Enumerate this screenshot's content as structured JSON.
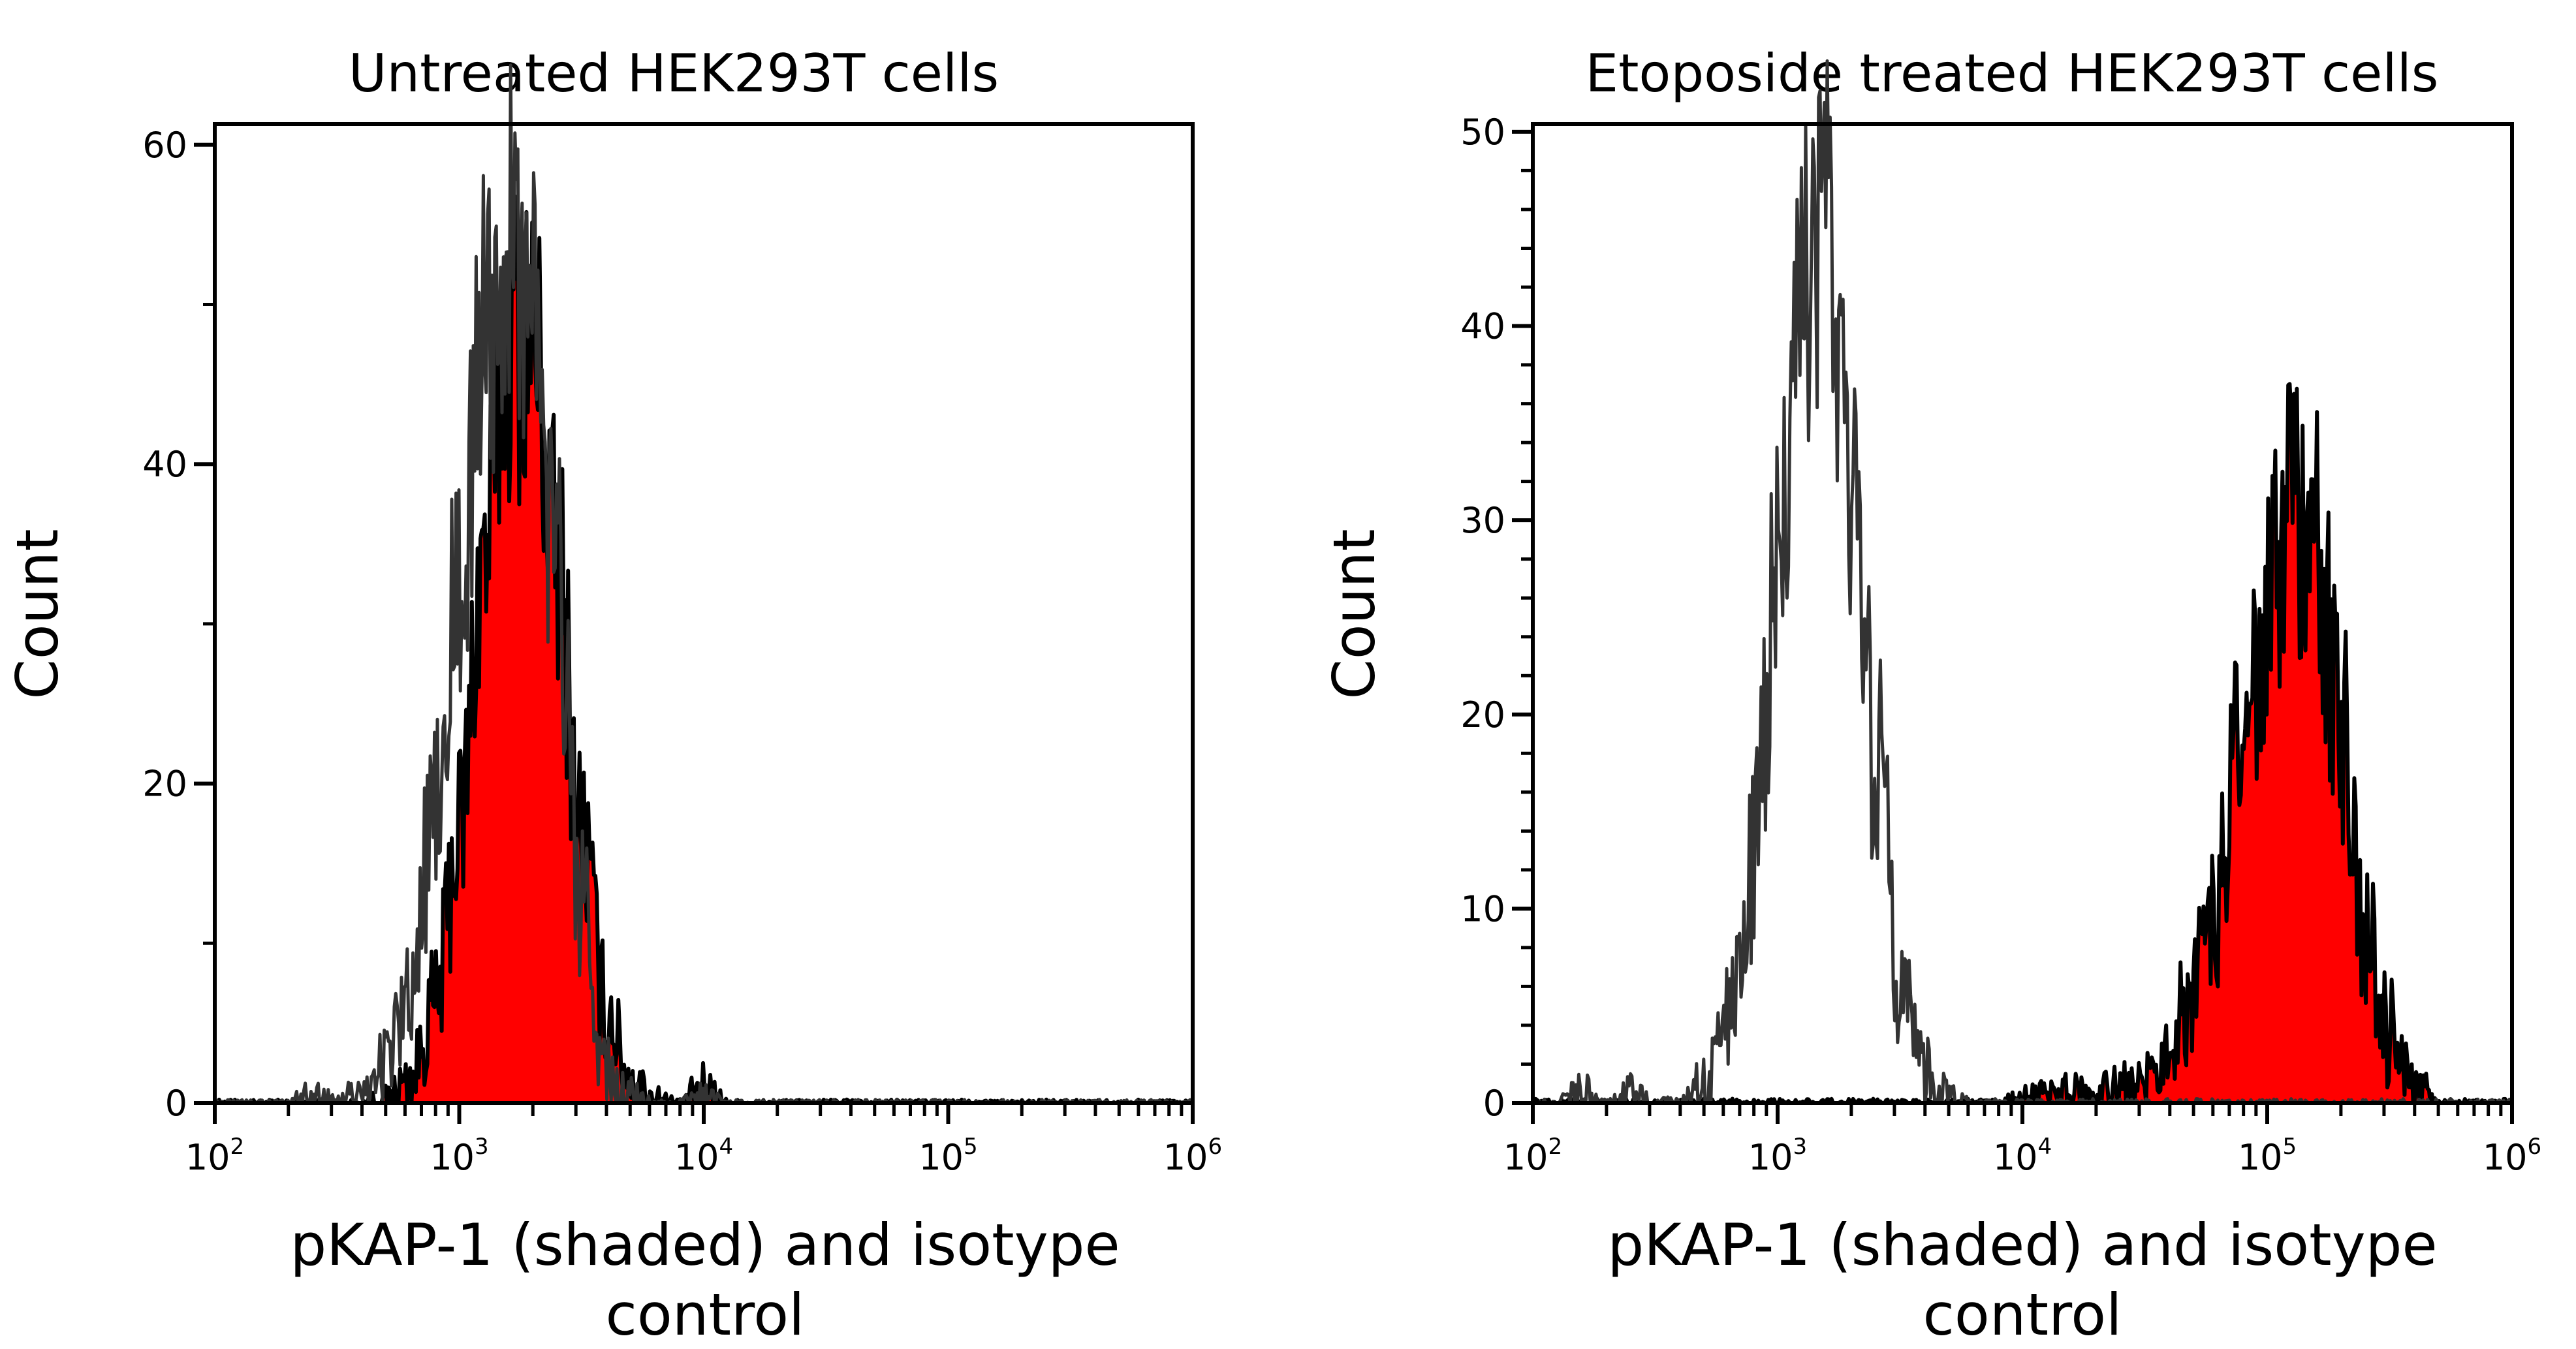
{
  "chart_data": [
    {
      "type": "area",
      "title": "Untreated HEK293T cells",
      "xlabel_lines": [
        "pKAP-1 (shaded) and isotype",
        "control"
      ],
      "ylabel": "Count",
      "xscale": "log",
      "xlim": [
        100,
        1000000
      ],
      "ylim": [
        0,
        61.3
      ],
      "x_ticks": [
        {
          "base": "10",
          "exp": "2",
          "value": 100
        },
        {
          "base": "10",
          "exp": "3",
          "value": 1000
        },
        {
          "base": "10",
          "exp": "4",
          "value": 10000
        },
        {
          "base": "10",
          "exp": "5",
          "value": 100000
        },
        {
          "base": "10",
          "exp": "6",
          "value": 1000000
        }
      ],
      "y_ticks": [
        {
          "label": "0",
          "value": 0
        },
        {
          "label": "20",
          "value": 20
        },
        {
          "label": "40",
          "value": 40
        },
        {
          "label": "60",
          "value": 60
        }
      ],
      "y_minor_step": 10,
      "grid": false,
      "x": [
        100,
        126,
        158,
        200,
        251,
        316,
        398,
        501,
        631,
        794,
        1000,
        1259,
        1585,
        1995,
        2512,
        3162,
        3981,
        5012,
        6310,
        7943,
        10000,
        12589,
        15849,
        19953,
        25119,
        31623,
        39811,
        50119,
        63096,
        79433,
        100000,
        125893,
        158489,
        199526,
        251189,
        316228,
        398107,
        501187,
        630957,
        794328,
        1000000
      ],
      "series": [
        {
          "role": "pKAP-1 (shaded)",
          "fill": "#ff0000",
          "stroke": "#000000",
          "values": [
            0,
            0,
            0,
            0,
            0,
            0,
            0,
            0.3,
            1.5,
            6,
            17,
            34,
            48,
            48,
            34,
            17,
            6,
            1.5,
            0.3,
            0,
            1,
            0,
            0,
            0,
            0,
            0,
            0,
            0,
            0,
            0,
            0,
            0,
            0,
            0,
            0,
            0,
            0,
            0,
            0,
            0,
            0
          ]
        },
        {
          "role": "isotype control",
          "fill": "none",
          "stroke": "#333333",
          "values": [
            0,
            0,
            0,
            0,
            0.5,
            0.2,
            0.6,
            2.4,
            7.4,
            18,
            33,
            48,
            55,
            48,
            33,
            12,
            2,
            0.5,
            0,
            0,
            0.5,
            0,
            0,
            0,
            0,
            0,
            0,
            0,
            0,
            0,
            0,
            0,
            0,
            0,
            0,
            0,
            0,
            0,
            0,
            0,
            0
          ]
        }
      ]
    },
    {
      "type": "area",
      "title": "Etoposide treated HEK293T cells",
      "xlabel_lines": [
        "pKAP-1 (shaded) and isotype",
        "control"
      ],
      "ylabel": "Count",
      "xscale": "log",
      "xlim": [
        100,
        1000000
      ],
      "ylim": [
        0,
        50.4
      ],
      "x_ticks": [
        {
          "base": "10",
          "exp": "2",
          "value": 100
        },
        {
          "base": "10",
          "exp": "3",
          "value": 1000
        },
        {
          "base": "10",
          "exp": "4",
          "value": 10000
        },
        {
          "base": "10",
          "exp": "5",
          "value": 100000
        },
        {
          "base": "10",
          "exp": "6",
          "value": 1000000
        }
      ],
      "y_ticks": [
        {
          "label": "0",
          "value": 0
        },
        {
          "label": "10",
          "value": 10
        },
        {
          "label": "20",
          "value": 20
        },
        {
          "label": "30",
          "value": 30
        },
        {
          "label": "40",
          "value": 40
        },
        {
          "label": "50",
          "value": 50
        }
      ],
      "y_minor_step": 2,
      "grid": false,
      "x": [
        100,
        126,
        158,
        200,
        251,
        316,
        398,
        501,
        631,
        794,
        1000,
        1259,
        1585,
        1995,
        2512,
        3162,
        3981,
        5012,
        6310,
        7943,
        10000,
        12589,
        15849,
        19953,
        25119,
        31623,
        39811,
        50119,
        63096,
        79433,
        100000,
        125893,
        158489,
        199526,
        251189,
        316228,
        398107,
        501187,
        630957,
        794328,
        1000000
      ],
      "series": [
        {
          "role": "pKAP-1 (shaded)",
          "fill": "#ff0000",
          "stroke": "#000000",
          "values": [
            0,
            0,
            0,
            0,
            0,
            0,
            0,
            0,
            0,
            0,
            0,
            0,
            0,
            0,
            0,
            0,
            0,
            0,
            0,
            0,
            0.2,
            0.3,
            0.5,
            0.5,
            0.8,
            1,
            2.7,
            6,
            11,
            18,
            25,
            29.4,
            29.4,
            20,
            10,
            3.6,
            0.9,
            0,
            0,
            0,
            0
          ]
        },
        {
          "role": "isotype control",
          "fill": "none",
          "stroke": "#333333",
          "values": [
            0,
            0,
            0.5,
            0,
            0.5,
            0,
            0.2,
            1,
            4.2,
            12.7,
            27,
            41,
            44,
            34,
            18,
            6.8,
            1.8,
            0.3,
            0,
            0,
            0,
            0,
            0,
            0,
            0,
            0,
            0,
            0,
            0,
            0,
            0,
            0,
            0,
            0,
            0,
            0,
            0,
            0,
            0,
            0,
            0
          ]
        }
      ]
    }
  ]
}
